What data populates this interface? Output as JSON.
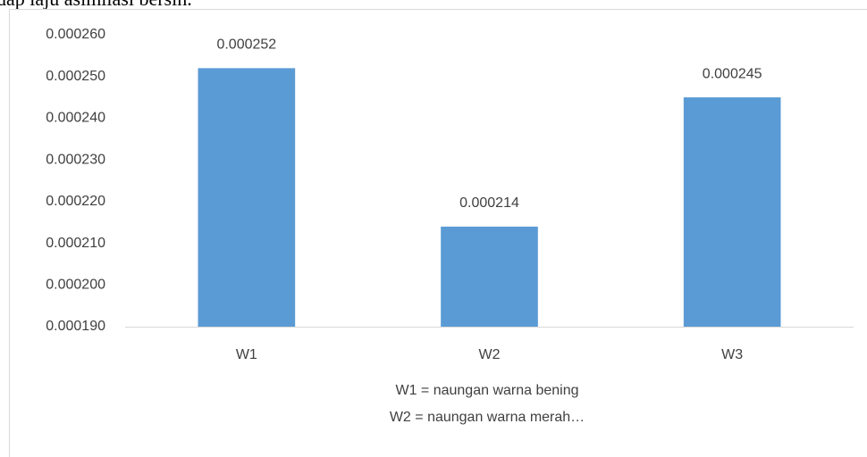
{
  "caption": "dap laju asimilasi bersih.",
  "chart_data": {
    "type": "bar",
    "categories": [
      "W1",
      "W2",
      "W3"
    ],
    "values": [
      0.000252,
      0.000214,
      0.000245
    ],
    "color": "#5b9bd5",
    "ylim": [
      0.00019,
      0.00026
    ],
    "yticks": [
      {
        "value": 0.00019,
        "label": "0.000190"
      },
      {
        "value": 0.0002,
        "label": "0.000200"
      },
      {
        "value": 0.00021,
        "label": "0.000210"
      },
      {
        "value": 0.00022,
        "label": "0.000220"
      },
      {
        "value": 0.00023,
        "label": "0.000230"
      },
      {
        "value": 0.00024,
        "label": "0.000240"
      },
      {
        "value": 0.00025,
        "label": "0.000250"
      },
      {
        "value": 0.00026,
        "label": "0.000260"
      }
    ],
    "grid": false,
    "notes": [
      "W1 = naungan warna bening",
      "W2 = naungan warna merah…"
    ]
  }
}
